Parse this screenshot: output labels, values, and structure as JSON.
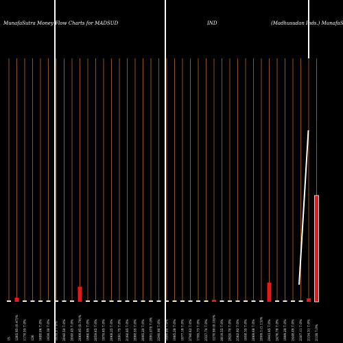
{
  "header": {
    "title": "MunafaSutra  Money Flow  Charts for MADSUD",
    "symbol_tail": "IND",
    "company": "(Madhusudan Inds.) MunafaS"
  },
  "chart_data": {
    "type": "bar",
    "categories": [
      "15",
      "1265.95 (0.47)%",
      "1170.55 7.0%",
      "126",
      "1680.06 7.0%",
      "1939.30 7.0%",
      "1919.5 7.0%",
      "2040.50 7.0%",
      "2040.45 7.0%",
      "2069.95 (0.74)%",
      "1960.95 7.0%",
      "2059.65 7.0%",
      "1970.65 7.0%",
      "2068.25 7.0%",
      "2091.75 7.0%",
      "2160.85 7.0%",
      "2080.55 7.0%",
      "2095.20 7.0%",
      "2091.075 7.0%",
      "2240.90 7.0%",
      "1890.80 7.0%",
      "1985.28 7.0%",
      "1977.18 7.0%",
      "2790.62 7.0%",
      "1795.73 7.0%",
      "2337.70 7.0%",
      "1270.90 (0.18)%",
      "2919.55 7.0%",
      "2920.70 7.0%",
      "2362.92 7.0%",
      "1958.35 7.0%",
      "2069.68 7.0%",
      "2009.1 (1.13)%",
      "2443.95 7.0%",
      "2476.78 7.0%",
      "1999.28 7.0%",
      "2448.09 7.0%",
      "2307.11 7.0%",
      "2134.31 7.0%",
      "2138 7.0%"
    ],
    "values": [
      2,
      6,
      2,
      2,
      2,
      2,
      2,
      2,
      2,
      22,
      2,
      2,
      2,
      2,
      2,
      2,
      2,
      2,
      2,
      2,
      2,
      2,
      2,
      2,
      2,
      2,
      3,
      2,
      2,
      2,
      2,
      2,
      2,
      28,
      2,
      2,
      2,
      2,
      5,
      155
    ],
    "colors": [
      "#f5f0dc",
      "#e31a1c",
      "#f5f0dc",
      "#f5f0dc",
      "#f5f0dc",
      "#f5f0dc",
      "#f5f0dc",
      "#f5f0dc",
      "#f5f0dc",
      "#e31a1c",
      "#f5f0dc",
      "#f5f0dc",
      "#f5f0dc",
      "#f5f0dc",
      "#f5f0dc",
      "#f5f0dc",
      "#f5f0dc",
      "#f5f0dc",
      "#f5f0dc",
      "#f5f0dc",
      "#f5f0dc",
      "#f5f0dc",
      "#f5f0dc",
      "#f5f0dc",
      "#f5f0dc",
      "#f5f0dc",
      "#e31a1c",
      "#f5f0dc",
      "#f5f0dc",
      "#f5f0dc",
      "#f5f0dc",
      "#f5f0dc",
      "#f5f0dc",
      "#e31a1c",
      "#f5f0dc",
      "#f5f0dc",
      "#f5f0dc",
      "#f5f0dc",
      "#e31a1c",
      "#e31a1c"
    ],
    "line": {
      "color": "#ffffff",
      "values": [
        null,
        null,
        null,
        null,
        null,
        null,
        null,
        null,
        null,
        null,
        null,
        null,
        null,
        null,
        null,
        null,
        null,
        null,
        null,
        null,
        null,
        null,
        null,
        null,
        null,
        null,
        null,
        null,
        null,
        null,
        null,
        null,
        null,
        null,
        null,
        null,
        null,
        null,
        25,
        250
      ]
    },
    "grid_color": "#b86a12"
  }
}
